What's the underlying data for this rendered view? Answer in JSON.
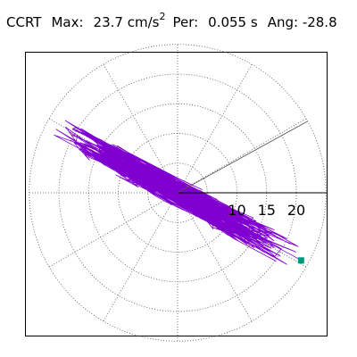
{
  "header": {
    "station": "CCRT",
    "max_label": "Max:",
    "max_value": "23.7",
    "max_unit": "cm/s",
    "max_unit_exp": "2",
    "per_label": "Per:",
    "per_value": "0.055 s",
    "ang_label": "Ang:",
    "ang_value": "-28.8"
  },
  "colors": {
    "trace": "#8000d0",
    "marker": "#009977",
    "grid": "#555555",
    "frame": "#000000"
  },
  "chart_data": {
    "type": "scatter",
    "polar": true,
    "rings": [
      5,
      10,
      15,
      20,
      25
    ],
    "ring_labels": [
      "10",
      "15",
      "20"
    ],
    "ring_label_values": [
      10,
      15,
      20
    ],
    "spokes_deg": [
      0,
      30,
      60,
      90,
      120,
      150,
      180,
      210,
      240,
      270,
      300,
      330
    ],
    "direction_line_deg": 28.8,
    "peak": {
      "x": 20.8,
      "y": -11.4
    },
    "trace": {
      "major_axis_deg": 151.2,
      "extent_along": 23.7,
      "extent_across": 2.6,
      "points": 900
    }
  }
}
